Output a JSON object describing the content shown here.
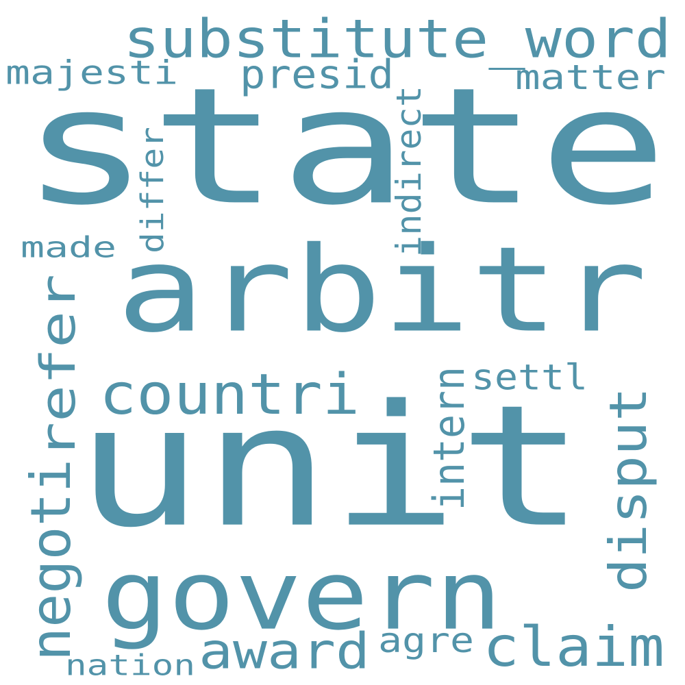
{
  "text_color": "#5293a9",
  "background_color": "#ffffff",
  "words": [
    "state",
    "unit",
    "arbitr",
    "govern",
    "substitute_word",
    "countri",
    "claim",
    "award",
    "disput",
    "negoti",
    "refer",
    "presid",
    "majesti",
    "matter",
    "indirect",
    "differ",
    "made",
    "intern",
    "settl",
    "agre",
    "nation"
  ]
}
